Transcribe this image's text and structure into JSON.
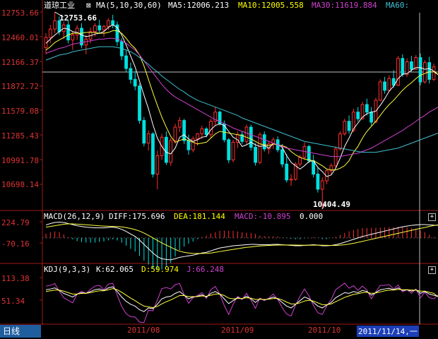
{
  "header": {
    "title": "道琼工业",
    "ma_label": "MA(5,10,30,60)",
    "ma5": "MA5:12006.213",
    "ma10": "MA10:12005.558",
    "ma30": "MA30:11619.884",
    "ma60": "MA60:"
  },
  "macd_header": {
    "name": "MACD(26,12,9)",
    "diff": "DIFF:175.696",
    "dea": "DEA:181.144",
    "macd": "MACD:-10.895",
    "zero": "0.000"
  },
  "kdj_header": {
    "name": "KDJ(9,3,3)",
    "k": "K:62.065",
    "d": "D:59.974",
    "j": "J:66.248"
  },
  "price_axis": [
    "12753.66",
    "12460.01",
    "12166.37",
    "11872.72",
    "11579.08",
    "11285.43",
    "10991.78",
    "10698.14"
  ],
  "macd_axis": [
    "224.79",
    "-70.16"
  ],
  "kdj_axis": [
    "113.38",
    "51.34"
  ],
  "annotations": {
    "high": "12753.66",
    "low": "10404.49"
  },
  "x_axis": {
    "dates": [
      "2011/08",
      "2011/09",
      "2011/10"
    ],
    "current": "2011/11/14,一"
  },
  "period_tab": "日线",
  "panel_buttons": [
    "+",
    "+"
  ],
  "colors": {
    "up": "#ff3030",
    "down": "#00e0e0",
    "ma5": "#ffffff",
    "ma10": "#ffff40",
    "ma30": "#d040d0",
    "ma60": "#40c0d0",
    "axis": "#a01818"
  },
  "chart_data": {
    "type": "candlestick",
    "ohlc": [
      [
        12330,
        12500,
        12250,
        12450
      ],
      [
        12450,
        12600,
        12380,
        12550
      ],
      [
        12550,
        12753.66,
        12500,
        12650
      ],
      [
        12650,
        12700,
        12480,
        12520
      ],
      [
        12520,
        12640,
        12430,
        12600
      ],
      [
        12600,
        12660,
        12380,
        12420
      ],
      [
        12420,
        12520,
        12300,
        12480
      ],
      [
        12480,
        12600,
        12420,
        12560
      ],
      [
        12560,
        12620,
        12320,
        12360
      ],
      [
        12360,
        12480,
        12250,
        12430
      ],
      [
        12430,
        12570,
        12380,
        12520
      ],
      [
        12520,
        12620,
        12460,
        12590
      ],
      [
        12590,
        12660,
        12500,
        12540
      ],
      [
        12540,
        12600,
        12460,
        12580
      ],
      [
        12580,
        12680,
        12540,
        12650
      ],
      [
        12650,
        12720,
        12560,
        12600
      ],
      [
        12600,
        12640,
        12350,
        12400
      ],
      [
        12400,
        12440,
        12180,
        12230
      ],
      [
        12230,
        12300,
        12040,
        12080
      ],
      [
        12080,
        12150,
        11900,
        11950
      ],
      [
        11950,
        12050,
        11820,
        11870
      ],
      [
        11870,
        11900,
        11420,
        11460
      ],
      [
        11460,
        11500,
        11150,
        11190
      ],
      [
        11190,
        11340,
        11100,
        11300
      ],
      [
        11300,
        11320,
        10780,
        10820
      ],
      [
        10820,
        11100,
        10640,
        11040
      ],
      [
        11040,
        11300,
        10990,
        11260
      ],
      [
        11260,
        11330,
        10930,
        10960
      ],
      [
        10960,
        11250,
        10920,
        11220
      ],
      [
        11220,
        11420,
        11180,
        11380
      ],
      [
        11380,
        11500,
        11320,
        11460
      ],
      [
        11460,
        11480,
        11180,
        11220
      ],
      [
        11220,
        11290,
        11050,
        11110
      ],
      [
        11110,
        11270,
        11080,
        11240
      ],
      [
        11240,
        11310,
        11160,
        11300
      ],
      [
        11300,
        11400,
        11240,
        11360
      ],
      [
        11360,
        11380,
        11260,
        11290
      ],
      [
        11290,
        11480,
        11250,
        11450
      ],
      [
        11450,
        11620,
        11400,
        11560
      ],
      [
        11560,
        11580,
        11400,
        11420
      ],
      [
        11420,
        11460,
        11200,
        11230
      ],
      [
        11230,
        11250,
        10950,
        10990
      ],
      [
        10990,
        11230,
        10960,
        11200
      ],
      [
        11200,
        11330,
        11130,
        11290
      ],
      [
        11290,
        11330,
        11180,
        11210
      ],
      [
        11210,
        11410,
        11180,
        11380
      ],
      [
        11380,
        11410,
        11100,
        11140
      ],
      [
        11140,
        11190,
        10920,
        10960
      ],
      [
        10960,
        11320,
        10940,
        11290
      ],
      [
        11290,
        11330,
        11090,
        11120
      ],
      [
        11120,
        11210,
        11060,
        11180
      ],
      [
        11180,
        11260,
        11120,
        11230
      ],
      [
        11230,
        11270,
        11080,
        11110
      ],
      [
        11110,
        11180,
        10900,
        10940
      ],
      [
        10940,
        11060,
        10720,
        10750
      ],
      [
        10750,
        10820,
        10680,
        10760
      ],
      [
        10760,
        10960,
        10740,
        10940
      ],
      [
        10940,
        11050,
        10910,
        11020
      ],
      [
        11020,
        11200,
        10990,
        11150
      ],
      [
        11150,
        11170,
        10950,
        10980
      ],
      [
        10980,
        11050,
        10780,
        10820
      ],
      [
        10820,
        10900,
        10600,
        10640
      ],
      [
        10640,
        10780,
        10404.49,
        10740
      ],
      [
        10740,
        10880,
        10700,
        10860
      ],
      [
        10860,
        10950,
        10810,
        10920
      ],
      [
        10920,
        11150,
        10900,
        11120
      ],
      [
        11120,
        11330,
        11100,
        11300
      ],
      [
        11300,
        11480,
        11280,
        11450
      ],
      [
        11450,
        11520,
        11300,
        11340
      ],
      [
        11340,
        11600,
        11320,
        11560
      ],
      [
        11560,
        11620,
        11450,
        11480
      ],
      [
        11480,
        11680,
        11470,
        11650
      ],
      [
        11650,
        11720,
        11520,
        11560
      ],
      [
        11560,
        11620,
        11400,
        11440
      ],
      [
        11440,
        11730,
        11430,
        11700
      ],
      [
        11700,
        11950,
        11690,
        11920
      ],
      [
        11920,
        11980,
        11780,
        11820
      ],
      [
        11820,
        12000,
        11800,
        11960
      ],
      [
        11960,
        12060,
        11850,
        11880
      ],
      [
        11880,
        12230,
        11870,
        12200
      ],
      [
        12200,
        12250,
        11980,
        12010
      ],
      [
        12010,
        12200,
        11980,
        12160
      ],
      [
        12160,
        12230,
        12040,
        12070
      ],
      [
        12070,
        12240,
        12060,
        12210
      ],
      [
        12210,
        12260,
        11880,
        11920
      ],
      [
        11920,
        12180,
        11900,
        12150
      ],
      [
        12150,
        12220,
        11900,
        11950
      ],
      [
        11950,
        12140,
        11930,
        12100
      ]
    ],
    "ma": [
      {
        "name": "MA5",
        "values": [
          12380,
          12430,
          12480,
          12520,
          12560,
          12550,
          12520,
          12510,
          12480,
          12460,
          12470,
          12490,
          12500,
          12520,
          12570,
          12600,
          12570,
          12480,
          12360,
          12230,
          12100,
          11930,
          11760,
          11600,
          11410,
          11250,
          11150,
          11080,
          11060,
          11130,
          11260,
          11290,
          11240,
          11210,
          11230,
          11260,
          11270,
          11350,
          11400,
          11420,
          11400,
          11330,
          11260,
          11230,
          11150,
          11170,
          11200,
          11170,
          11150,
          11160,
          11130,
          11180,
          11170,
          11140,
          11040,
          10960,
          10920,
          10880,
          10920,
          10970,
          10980,
          10900,
          10850,
          10790,
          10810,
          10890,
          11010,
          11150,
          11250,
          11360,
          11430,
          11500,
          11540,
          11560,
          11570,
          11640,
          11720,
          11810,
          11870,
          11960,
          12010,
          12020,
          12060,
          12090,
          12090,
          12070,
          12080,
          12050,
          12006
        ]
      },
      {
        "name": "MA10",
        "values": [
          12300,
          12340,
          12390,
          12420,
          12450,
          12480,
          12500,
          12500,
          12500,
          12510,
          12510,
          12510,
          12500,
          12500,
          12510,
          12530,
          12530,
          12500,
          12440,
          12370,
          12320,
          12240,
          12110,
          11950,
          11790,
          11640,
          11500,
          11380,
          11270,
          11200,
          11220,
          11240,
          11220,
          11200,
          11180,
          11190,
          11200,
          11250,
          11300,
          11330,
          11320,
          11310,
          11300,
          11290,
          11280,
          11260,
          11240,
          11210,
          11180,
          11170,
          11160,
          11180,
          11170,
          11160,
          11140,
          11090,
          11050,
          11020,
          11000,
          10990,
          10980,
          10950,
          10920,
          10880,
          10870,
          10870,
          10890,
          10920,
          10980,
          11080,
          11150,
          11250,
          11330,
          11390,
          11450,
          11520,
          11590,
          11650,
          11700,
          11760,
          11820,
          11870,
          11910,
          11960,
          12000,
          12020,
          12040,
          12040,
          12005
        ]
      },
      {
        "name": "MA30",
        "values": [
          12260,
          12280,
          12300,
          12320,
          12330,
          12350,
          12370,
          12380,
          12390,
          12400,
          12410,
          12420,
          12430,
          12430,
          12440,
          12440,
          12430,
          12410,
          12380,
          12340,
          12300,
          12240,
          12170,
          12100,
          12030,
          11960,
          11890,
          11830,
          11780,
          11740,
          11710,
          11680,
          11650,
          11620,
          11590,
          11560,
          11530,
          11500,
          11470,
          11450,
          11420,
          11400,
          11370,
          11350,
          11330,
          11310,
          11290,
          11270,
          11250,
          11230,
          11210,
          11190,
          11170,
          11150,
          11130,
          11120,
          11110,
          11100,
          11090,
          11080,
          11070,
          11060,
          11050,
          11040,
          11030,
          11030,
          11030,
          11040,
          11050,
          11060,
          11070,
          11090,
          11110,
          11130,
          11160,
          11190,
          11220,
          11250,
          11280,
          11310,
          11340,
          11380,
          11410,
          11450,
          11490,
          11520,
          11560,
          11590,
          11620
        ]
      },
      {
        "name": "MA60",
        "values": [
          12180,
          12200,
          12220,
          12240,
          12250,
          12260,
          12280,
          12290,
          12300,
          12310,
          12320,
          12330,
          12340,
          12340,
          12340,
          12340,
          12330,
          12320,
          12300,
          12280,
          12250,
          12210,
          12170,
          12130,
          12080,
          12040,
          11990,
          11950,
          11910,
          11870,
          11830,
          11800,
          11760,
          11730,
          11700,
          11680,
          11660,
          11640,
          11620,
          11600,
          11580,
          11560,
          11540,
          11520,
          11490,
          11470,
          11450,
          11430,
          11410,
          11390,
          11370,
          11350,
          11330,
          11310,
          11290,
          11270,
          11250,
          11230,
          11210,
          11200,
          11190,
          11180,
          11170,
          11160,
          11150,
          11140,
          11130,
          11120,
          11110,
          11100,
          11090,
          11080,
          11080,
          11080,
          11080,
          11090,
          11100,
          11110,
          11120,
          11130,
          11150,
          11170,
          11190,
          11210,
          11230,
          11250,
          11270,
          11290,
          11310
        ]
      }
    ],
    "macd": {
      "diff": [
        180,
        200,
        215,
        220,
        215,
        200,
        185,
        170,
        160,
        150,
        145,
        140,
        140,
        140,
        145,
        150,
        140,
        120,
        90,
        55,
        20,
        -30,
        -90,
        -150,
        -210,
        -260,
        -290,
        -300,
        -305,
        -290,
        -270,
        -260,
        -250,
        -240,
        -225,
        -210,
        -200,
        -180,
        -160,
        -140,
        -130,
        -120,
        -110,
        -105,
        -100,
        -95,
        -90,
        -90,
        -95,
        -95,
        -95,
        -90,
        -90,
        -95,
        -100,
        -105,
        -110,
        -110,
        -105,
        -100,
        -95,
        -100,
        -110,
        -110,
        -105,
        -95,
        -80,
        -60,
        -40,
        -20,
        0,
        20,
        35,
        50,
        65,
        80,
        95,
        110,
        125,
        140,
        155,
        165,
        175,
        180,
        185,
        185,
        182,
        178,
        176
      ],
      "dea": [
        150,
        160,
        170,
        180,
        190,
        195,
        195,
        192,
        188,
        183,
        178,
        173,
        168,
        165,
        162,
        160,
        158,
        153,
        144,
        131,
        115,
        95,
        68,
        35,
        0,
        -35,
        -70,
        -100,
        -130,
        -160,
        -185,
        -200,
        -210,
        -215,
        -217,
        -217,
        -215,
        -210,
        -200,
        -190,
        -180,
        -170,
        -160,
        -150,
        -140,
        -132,
        -125,
        -118,
        -112,
        -108,
        -105,
        -102,
        -100,
        -98,
        -98,
        -99,
        -100,
        -101,
        -102,
        -102,
        -101,
        -101,
        -102,
        -103,
        -104,
        -104,
        -101,
        -95,
        -86,
        -75,
        -62,
        -48,
        -34,
        -20,
        -6,
        8,
        22,
        36,
        50,
        64,
        78,
        92,
        106,
        120,
        133,
        145,
        160,
        172,
        181
      ]
    },
    "kdj": {
      "k": [
        80,
        82,
        85,
        78,
        70,
        65,
        60,
        68,
        72,
        70,
        75,
        80,
        82,
        78,
        85,
        88,
        75,
        60,
        48,
        40,
        35,
        25,
        20,
        30,
        28,
        40,
        55,
        60,
        62,
        70,
        75,
        65,
        55,
        60,
        62,
        66,
        60,
        70,
        75,
        68,
        55,
        42,
        50,
        58,
        55,
        62,
        55,
        45,
        55,
        52,
        55,
        60,
        55,
        45,
        35,
        30,
        40,
        50,
        60,
        55,
        45,
        35,
        30,
        38,
        45,
        58,
        65,
        72,
        70,
        75,
        72,
        78,
        75,
        65,
        72,
        80,
        82,
        84,
        80,
        85,
        78,
        80,
        76,
        80,
        70,
        75,
        68,
        65,
        62
      ],
      "d": [
        75,
        77,
        79,
        79,
        76,
        72,
        68,
        68,
        70,
        70,
        72,
        75,
        77,
        77,
        80,
        83,
        80,
        73,
        65,
        57,
        50,
        42,
        35,
        33,
        31,
        34,
        41,
        47,
        52,
        58,
        64,
        64,
        61,
        61,
        61,
        63,
        62,
        65,
        68,
        68,
        64,
        57,
        55,
        56,
        56,
        58,
        57,
        53,
        54,
        53,
        54,
        56,
        56,
        52,
        46,
        41,
        41,
        44,
        49,
        51,
        49,
        44,
        39,
        39,
        41,
        47,
        53,
        59,
        63,
        67,
        69,
        72,
        73,
        70,
        71,
        74,
        77,
        79,
        79,
        81,
        80,
        80,
        79,
        79,
        76,
        76,
        73,
        70,
        60
      ]
    }
  }
}
